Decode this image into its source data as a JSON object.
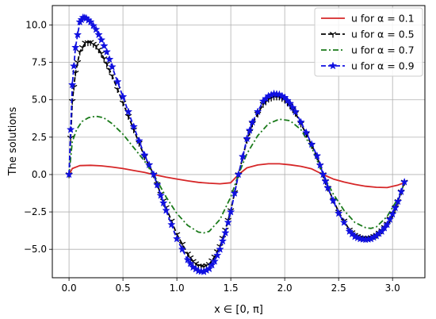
{
  "chart_data": {
    "type": "line",
    "xlabel": "x ∈ [0, π]",
    "ylabel": "The solutions",
    "xlim": [
      -0.155,
      3.3
    ],
    "ylim": [
      -6.9,
      11.3
    ],
    "xticks": [
      0.0,
      0.5,
      1.0,
      1.5,
      2.0,
      2.5,
      3.0
    ],
    "xtick_labels": [
      "0.0",
      "0.5",
      "1.0",
      "1.5",
      "2.0",
      "2.5",
      "3.0"
    ],
    "yticks": [
      -5.0,
      -2.5,
      0.0,
      2.5,
      5.0,
      7.5,
      10.0
    ],
    "ytick_labels": [
      "−5.0",
      "−2.5",
      "0.0",
      "2.5",
      "5.0",
      "7.5",
      "10.0"
    ],
    "grid": true,
    "legend_position": "top-right",
    "series": [
      {
        "name": "u for α = 0.1",
        "color": "#d62728",
        "style": "solid",
        "marker": "none",
        "x": [
          0.0,
          0.03,
          0.1,
          0.2,
          0.3,
          0.4,
          0.5,
          0.6,
          0.7,
          0.785,
          0.9,
          1.0,
          1.1,
          1.2,
          1.3,
          1.4,
          1.5,
          1.571,
          1.65,
          1.75,
          1.85,
          1.95,
          2.05,
          2.15,
          2.25,
          2.356,
          2.45,
          2.55,
          2.65,
          2.75,
          2.85,
          2.95,
          3.05,
          3.11
        ],
        "y": [
          0.0,
          0.4,
          0.6,
          0.62,
          0.58,
          0.5,
          0.4,
          0.27,
          0.14,
          0.0,
          -0.17,
          -0.3,
          -0.42,
          -0.52,
          -0.58,
          -0.62,
          -0.55,
          0.0,
          0.45,
          0.64,
          0.72,
          0.72,
          0.65,
          0.55,
          0.38,
          0.0,
          -0.3,
          -0.5,
          -0.66,
          -0.78,
          -0.85,
          -0.87,
          -0.7,
          -0.55
        ]
      },
      {
        "name": "u for α = 0.5",
        "color": "#000000",
        "style": "dashed",
        "marker": "tri",
        "x": [
          0.0,
          0.03,
          0.06,
          0.1,
          0.15,
          0.2,
          0.25,
          0.3,
          0.35,
          0.4,
          0.5,
          0.6,
          0.7,
          0.785,
          0.85,
          0.9,
          1.0,
          1.1,
          1.15,
          1.2,
          1.25,
          1.3,
          1.35,
          1.4,
          1.45,
          1.5,
          1.571,
          1.65,
          1.7,
          1.8,
          1.85,
          1.9,
          1.95,
          2.0,
          2.05,
          2.1,
          2.2,
          2.3,
          2.356,
          2.4,
          2.5,
          2.6,
          2.65,
          2.7,
          2.75,
          2.8,
          2.85,
          2.9,
          2.95,
          3.0,
          3.05,
          3.11
        ],
        "y": [
          0.0,
          4.9,
          6.8,
          8.2,
          8.8,
          8.85,
          8.6,
          8.1,
          7.4,
          6.6,
          4.8,
          3.0,
          1.2,
          0.0,
          -1.3,
          -2.2,
          -4.0,
          -5.3,
          -5.8,
          -6.1,
          -6.15,
          -6.0,
          -5.5,
          -4.8,
          -3.7,
          -2.4,
          0.0,
          2.3,
          3.4,
          4.7,
          5.05,
          5.2,
          5.2,
          5.0,
          4.6,
          4.1,
          2.7,
          1.2,
          0.0,
          -0.9,
          -2.5,
          -3.7,
          -4.05,
          -4.2,
          -4.25,
          -4.2,
          -4.05,
          -3.75,
          -3.3,
          -2.6,
          -1.8,
          -0.5
        ]
      },
      {
        "name": "u for α = 0.7",
        "color": "#1a7a1a",
        "style": "dashdot",
        "marker": "none",
        "x": [
          0.0,
          0.03,
          0.07,
          0.12,
          0.18,
          0.25,
          0.32,
          0.4,
          0.5,
          0.6,
          0.7,
          0.785,
          0.9,
          1.0,
          1.1,
          1.2,
          1.25,
          1.3,
          1.4,
          1.5,
          1.571,
          1.65,
          1.75,
          1.85,
          1.95,
          2.05,
          2.15,
          2.25,
          2.356,
          2.45,
          2.55,
          2.65,
          2.75,
          2.8,
          2.85,
          2.95,
          3.05,
          3.11
        ],
        "y": [
          0.0,
          2.2,
          3.0,
          3.55,
          3.8,
          3.9,
          3.8,
          3.4,
          2.7,
          1.8,
          0.9,
          0.0,
          -1.5,
          -2.6,
          -3.4,
          -3.85,
          -3.9,
          -3.8,
          -3.0,
          -1.5,
          0.0,
          1.4,
          2.6,
          3.4,
          3.7,
          3.6,
          3.0,
          1.8,
          0.0,
          -1.3,
          -2.4,
          -3.2,
          -3.55,
          -3.6,
          -3.5,
          -2.8,
          -1.6,
          -0.6
        ]
      },
      {
        "name": "u for α = 0.9",
        "color": "#1010e0",
        "style": "dashed",
        "marker": "star",
        "x": [
          0.0,
          0.03,
          0.06,
          0.1,
          0.13,
          0.16,
          0.2,
          0.25,
          0.3,
          0.35,
          0.4,
          0.5,
          0.6,
          0.7,
          0.785,
          0.85,
          0.9,
          1.0,
          1.1,
          1.15,
          1.2,
          1.25,
          1.3,
          1.35,
          1.4,
          1.45,
          1.5,
          1.571,
          1.65,
          1.7,
          1.8,
          1.85,
          1.9,
          1.95,
          2.0,
          2.05,
          2.1,
          2.2,
          2.3,
          2.356,
          2.4,
          2.5,
          2.6,
          2.65,
          2.7,
          2.75,
          2.8,
          2.85,
          2.9,
          2.95,
          3.0,
          3.05,
          3.11
        ],
        "y": [
          0.0,
          6.0,
          8.5,
          10.2,
          10.5,
          10.45,
          10.2,
          9.7,
          9.0,
          8.2,
          7.2,
          5.2,
          3.2,
          1.3,
          0.0,
          -1.4,
          -2.4,
          -4.3,
          -5.7,
          -6.2,
          -6.45,
          -6.5,
          -6.3,
          -5.8,
          -5.0,
          -3.9,
          -2.5,
          0.0,
          2.4,
          3.5,
          4.9,
          5.25,
          5.4,
          5.35,
          5.15,
          4.75,
          4.2,
          2.8,
          1.25,
          0.0,
          -0.9,
          -2.6,
          -3.8,
          -4.15,
          -4.3,
          -4.35,
          -4.3,
          -4.1,
          -3.8,
          -3.35,
          -2.65,
          -1.8,
          -0.5
        ]
      }
    ]
  }
}
